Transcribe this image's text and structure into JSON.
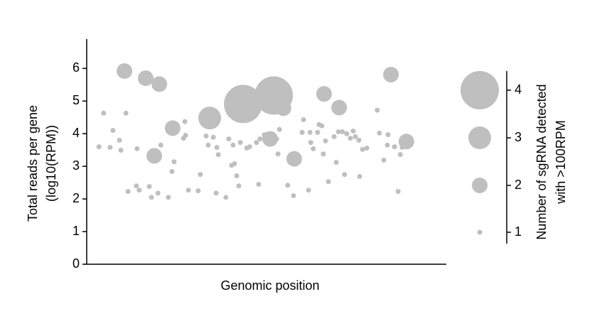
{
  "chart_data": {
    "type": "scatter",
    "xlabel": "Genomic position",
    "ylabel": [
      "Total reads per gene",
      "(log10(RPM))"
    ],
    "xlim": [
      0,
      100
    ],
    "ylim": [
      0,
      6.9
    ],
    "yticks": [
      0,
      1,
      2,
      3,
      4,
      5,
      6
    ],
    "series": [
      {
        "color": "#bfbfbf",
        "x": [
          10.5,
          16.4,
          20.2,
          18.8,
          23.9,
          34.2,
          43.5,
          52.0,
          54.7,
          51.0,
          57.7,
          66.0,
          70.2,
          84.6,
          88.9,
          4.7,
          3.4,
          6.5,
          7.3,
          9.5,
          9.1,
          10.9,
          14.0,
          11.5,
          13.8,
          14.6,
          17.4,
          18.0,
          19.8,
          22.7,
          20.6,
          23.7,
          24.3,
          26.9,
          27.3,
          28.3,
          31.0,
          31.6,
          27.5,
          33.2,
          33.8,
          36.0,
          35.2,
          36.2,
          36.6,
          38.7,
          39.5,
          40.3,
          40.7,
          41.1,
          41.7,
          42.3,
          42.7,
          44.5,
          45.3,
          47.2,
          47.8,
          48.2,
          49.4,
          52.8,
          53.2,
          53.6,
          55.9,
          57.5,
          59.9,
          60.3,
          61.7,
          62.3,
          63.0,
          64.2,
          64.6,
          65.4,
          65.8,
          66.4,
          67.2,
          68.8,
          69.4,
          70.0,
          71.1,
          71.7,
          72.3,
          73.3,
          74.1,
          74.7,
          75.7,
          75.9,
          76.7,
          77.9,
          80.8,
          81.4,
          82.6,
          83.6,
          83.8,
          85.6,
          86.6,
          87.2,
          87.7,
          62.1
        ],
        "values": [
          5.92,
          5.7,
          5.52,
          3.32,
          4.17,
          4.48,
          4.91,
          5.17,
          4.78,
          3.84,
          3.23,
          5.22,
          4.8,
          5.81,
          3.76,
          4.63,
          3.6,
          3.58,
          4.1,
          3.49,
          3.8,
          4.63,
          3.54,
          2.23,
          2.4,
          2.27,
          2.38,
          2.05,
          2.18,
          2.05,
          3.65,
          2.84,
          3.14,
          3.86,
          4.37,
          2.27,
          2.25,
          2.75,
          3.95,
          3.93,
          3.65,
          2.18,
          3.89,
          3.58,
          3.36,
          2.05,
          3.84,
          3.03,
          3.65,
          3.08,
          2.71,
          2.4,
          3.73,
          3.56,
          3.6,
          3.73,
          2.45,
          3.84,
          3.97,
          3.84,
          3.38,
          4.13,
          2.42,
          2.1,
          4.04,
          4.43,
          2.27,
          3.73,
          3.54,
          4.04,
          4.28,
          4.24,
          3.38,
          3.78,
          2.53,
          3.91,
          3.12,
          4.06,
          4.06,
          2.75,
          4.0,
          3.86,
          4.08,
          3.91,
          3.8,
          2.69,
          3.52,
          3.56,
          4.72,
          4.02,
          3.19,
          3.65,
          3.97,
          3.6,
          2.23,
          3.36,
          3.58,
          4.04
        ],
        "sizes": [
          2,
          2,
          2,
          2,
          2,
          3,
          4,
          4,
          2,
          2,
          2,
          2,
          2,
          2,
          2,
          1,
          1,
          1,
          1,
          1,
          1,
          1,
          1,
          1,
          1,
          1,
          1,
          1,
          1,
          1,
          1,
          1,
          1,
          1,
          1,
          1,
          1,
          1,
          1,
          1,
          1,
          1,
          1,
          1,
          1,
          1,
          1,
          1,
          1,
          1,
          1,
          1,
          1,
          1,
          1,
          1,
          1,
          1,
          1,
          1,
          1,
          1,
          1,
          1,
          1,
          1,
          1,
          1,
          1,
          1,
          1,
          1,
          1,
          1,
          1,
          1,
          1,
          1,
          1,
          1,
          1,
          1,
          1,
          1,
          1,
          1,
          1,
          1,
          1,
          1,
          1,
          1,
          1,
          1,
          1,
          1,
          1,
          1
        ]
      }
    ],
    "size_legend": {
      "title": [
        "Number of sgRNA detected",
        "with >100RPM"
      ],
      "sizes": [
        1,
        2,
        3,
        4
      ]
    }
  }
}
